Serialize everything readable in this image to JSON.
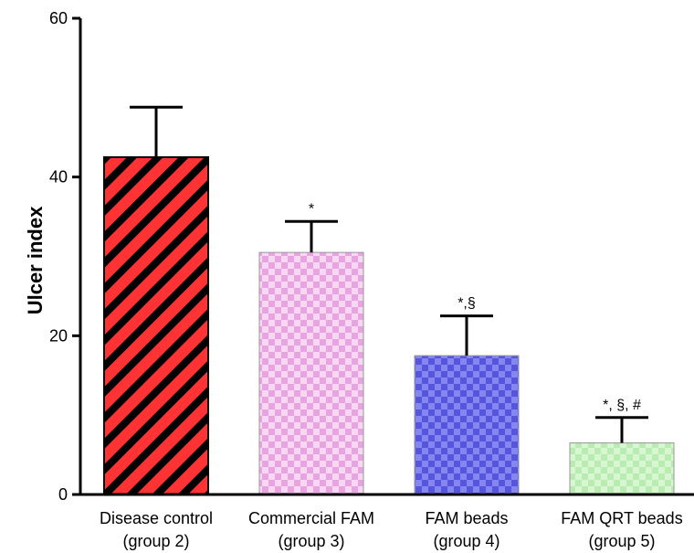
{
  "chart_data": {
    "type": "bar",
    "title": "",
    "xlabel": "",
    "ylabel": "Ulcer index",
    "ylim": [
      0,
      60
    ],
    "yticks": [
      0,
      20,
      40,
      60
    ],
    "grid": false,
    "categories": [
      {
        "line1": "Disease control",
        "line2": "(group 2)"
      },
      {
        "line1": "Commercial FAM",
        "line2": "(group 3)"
      },
      {
        "line1": "FAM beads",
        "line2": "(group 4)"
      },
      {
        "line1": "FAM QRT beads",
        "line2": "(group 5)"
      }
    ],
    "values": [
      42.5,
      30.5,
      17.5,
      6.5
    ],
    "errors": [
      6.3,
      3.9,
      5.0,
      3.2
    ],
    "annotations": [
      "",
      "*",
      "*,§",
      "*, §, #"
    ],
    "bar_patterns": [
      "diagonal-stripes",
      "checker",
      "checker",
      "checker"
    ],
    "bar_colors": [
      {
        "base": "#ff3333",
        "pattern": "#000000"
      },
      {
        "base": "#e8a4e0",
        "pattern": "#f7d7f2"
      },
      {
        "base": "#5555dd",
        "pattern": "#8686f0"
      },
      {
        "base": "#b8ecb0",
        "pattern": "#d7f6d1"
      }
    ]
  }
}
